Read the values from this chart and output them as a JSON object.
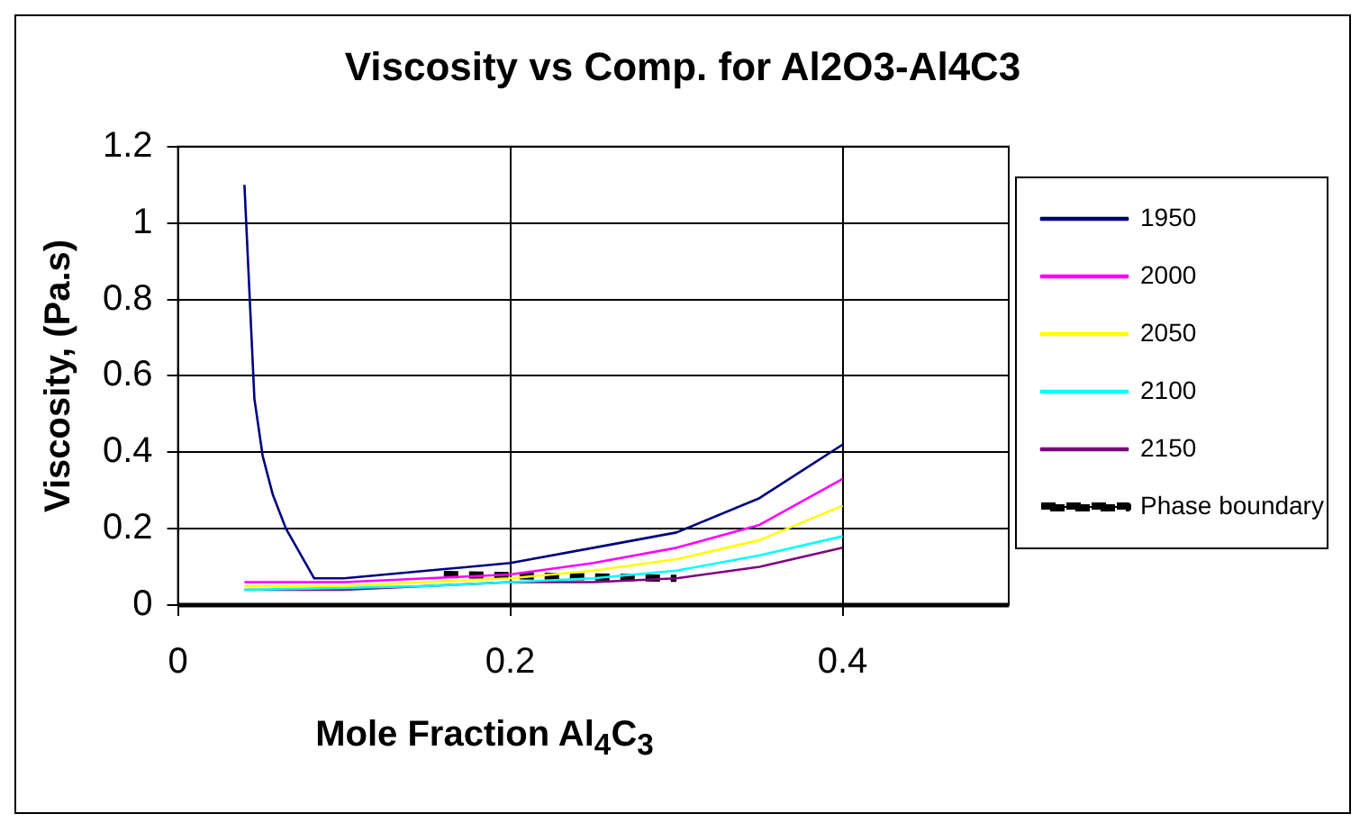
{
  "chart_data": {
    "type": "line",
    "title": "Viscosity vs Comp. for Al2O3-Al4C3",
    "xlabel": "Mole Fraction Al$_{4}$C$_{3}$",
    "ylabel": "Viscosity, (Pa.s)",
    "xlim": [
      0,
      0.5
    ],
    "xticks": [
      0,
      0.2,
      0.4
    ],
    "ylim": [
      0,
      1.2
    ],
    "yticks": [
      0,
      0.2,
      0.4,
      0.6,
      0.8,
      1,
      1.2
    ],
    "grid": true,
    "legend": "right",
    "marker": "none",
    "series": [
      {
        "name": "1950",
        "color": "#000080",
        "x": [
          0.04,
          0.046,
          0.051,
          0.057,
          0.065,
          0.082,
          0.1,
          0.15,
          0.2,
          0.25,
          0.3,
          0.35,
          0.4
        ],
        "values": [
          1.1,
          0.54,
          0.39,
          0.29,
          0.2,
          0.07,
          0.07,
          0.09,
          0.11,
          0.15,
          0.19,
          0.28,
          0.42
        ]
      },
      {
        "name": "2000",
        "color": "#ff00ff",
        "x": [
          0.04,
          0.1,
          0.15,
          0.2,
          0.25,
          0.3,
          0.35,
          0.4
        ],
        "values": [
          0.06,
          0.06,
          0.07,
          0.08,
          0.11,
          0.15,
          0.21,
          0.33
        ]
      },
      {
        "name": "2050",
        "color": "#ffff00",
        "x": [
          0.04,
          0.1,
          0.15,
          0.2,
          0.25,
          0.3,
          0.35,
          0.4
        ],
        "values": [
          0.05,
          0.05,
          0.06,
          0.07,
          0.09,
          0.12,
          0.17,
          0.26
        ]
      },
      {
        "name": "2100",
        "color": "#00ffff",
        "x": [
          0.04,
          0.1,
          0.15,
          0.2,
          0.25,
          0.3,
          0.35,
          0.4
        ],
        "values": [
          0.04,
          0.045,
          0.05,
          0.06,
          0.07,
          0.09,
          0.13,
          0.18
        ]
      },
      {
        "name": "2150",
        "color": "#800080",
        "x": [
          0.04,
          0.1,
          0.15,
          0.2,
          0.25,
          0.3,
          0.35,
          0.4
        ],
        "values": [
          0.04,
          0.04,
          0.05,
          0.06,
          0.06,
          0.07,
          0.1,
          0.15
        ]
      },
      {
        "name": "Phase boundary",
        "color": "#000000",
        "line_style": "dashed",
        "x": [
          0.16,
          0.3
        ],
        "values": [
          0.08,
          0.07
        ]
      }
    ]
  }
}
